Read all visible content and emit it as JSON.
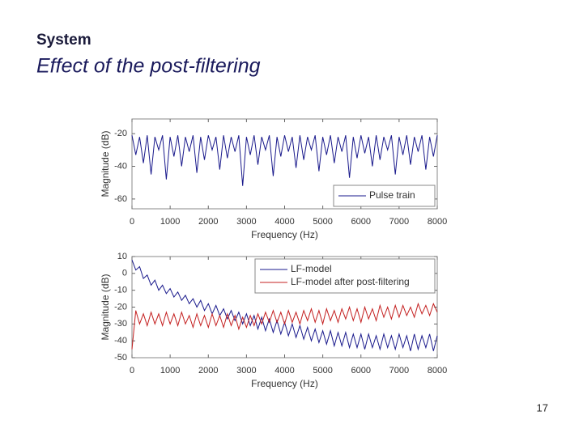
{
  "header": {
    "section": "System",
    "title": "Effect of the post-filtering"
  },
  "page_number": "17",
  "chart_data": [
    {
      "type": "line",
      "xlabel": "Frequency (Hz)",
      "ylabel": "Magnitude (dB)",
      "xlim": [
        0,
        8000
      ],
      "ylim": [
        -66,
        -11
      ],
      "xticks": [
        0,
        1000,
        2000,
        3000,
        4000,
        5000,
        6000,
        7000,
        8000
      ],
      "yticks": [
        -20,
        -40,
        -60
      ],
      "legend": "lower right",
      "x": [
        0,
        100,
        200,
        300,
        400,
        500,
        600,
        700,
        800,
        900,
        1000,
        1100,
        1200,
        1300,
        1400,
        1500,
        1600,
        1700,
        1800,
        1900,
        2000,
        2100,
        2200,
        2300,
        2400,
        2500,
        2600,
        2700,
        2800,
        2900,
        3000,
        3100,
        3200,
        3300,
        3400,
        3500,
        3600,
        3700,
        3800,
        3900,
        4000,
        4100,
        4200,
        4300,
        4400,
        4500,
        4600,
        4700,
        4800,
        4900,
        5000,
        5100,
        5200,
        5300,
        5400,
        5500,
        5600,
        5700,
        5800,
        5900,
        6000,
        6100,
        6200,
        6300,
        6400,
        6500,
        6600,
        6700,
        6800,
        6900,
        7000,
        7100,
        7200,
        7300,
        7400,
        7500,
        7600,
        7700,
        7800,
        7900,
        8000
      ],
      "series": [
        {
          "name": "Pulse train",
          "color": "#1a1a8c",
          "values": [
            -21,
            -33,
            -22,
            -38,
            -21,
            -45,
            -22,
            -30,
            -21,
            -48,
            -22,
            -34,
            -21,
            -40,
            -22,
            -31,
            -21,
            -44,
            -22,
            -36,
            -21,
            -30,
            -22,
            -42,
            -21,
            -35,
            -22,
            -31,
            -21,
            -52,
            -22,
            -33,
            -21,
            -39,
            -22,
            -30,
            -21,
            -46,
            -22,
            -34,
            -21,
            -31,
            -22,
            -41,
            -21,
            -36,
            -22,
            -30,
            -21,
            -43,
            -22,
            -33,
            -21,
            -38,
            -22,
            -31,
            -21,
            -47,
            -22,
            -35,
            -21,
            -32,
            -22,
            -40,
            -21,
            -36,
            -22,
            -30,
            -21,
            -45,
            -22,
            -33,
            -21,
            -39,
            -22,
            -31,
            -21,
            -42,
            -22,
            -34,
            -21
          ]
        }
      ]
    },
    {
      "type": "line",
      "xlabel": "Frequency (Hz)",
      "ylabel": "Magnitude (dB)",
      "xlim": [
        0,
        8000
      ],
      "ylim": [
        -50,
        10
      ],
      "xticks": [
        0,
        1000,
        2000,
        3000,
        4000,
        5000,
        6000,
        7000,
        8000
      ],
      "yticks": [
        10,
        0,
        -10,
        -20,
        -30,
        -40,
        -50
      ],
      "legend": "upper right",
      "x": [
        0,
        100,
        200,
        300,
        400,
        500,
        600,
        700,
        800,
        900,
        1000,
        1100,
        1200,
        1300,
        1400,
        1500,
        1600,
        1700,
        1800,
        1900,
        2000,
        2100,
        2200,
        2300,
        2400,
        2500,
        2600,
        2700,
        2800,
        2900,
        3000,
        3100,
        3200,
        3300,
        3400,
        3500,
        3600,
        3700,
        3800,
        3900,
        4000,
        4100,
        4200,
        4300,
        4400,
        4500,
        4600,
        4700,
        4800,
        4900,
        5000,
        5100,
        5200,
        5300,
        5400,
        5500,
        5600,
        5700,
        5800,
        5900,
        6000,
        6100,
        6200,
        6300,
        6400,
        6500,
        6600,
        6700,
        6800,
        6900,
        7000,
        7100,
        7200,
        7300,
        7400,
        7500,
        7600,
        7700,
        7800,
        7900,
        8000
      ],
      "series": [
        {
          "name": "LF-model",
          "color": "#1a1a8c",
          "values": [
            8,
            2,
            4,
            -3,
            -1,
            -7,
            -4,
            -10,
            -7,
            -12,
            -9,
            -14,
            -11,
            -16,
            -13,
            -18,
            -15,
            -20,
            -16,
            -22,
            -18,
            -24,
            -19,
            -25,
            -21,
            -27,
            -22,
            -28,
            -23,
            -30,
            -24,
            -31,
            -25,
            -33,
            -26,
            -34,
            -27,
            -35,
            -28,
            -36,
            -29,
            -37,
            -30,
            -38,
            -31,
            -39,
            -32,
            -40,
            -33,
            -41,
            -34,
            -42,
            -34,
            -43,
            -35,
            -43,
            -35,
            -44,
            -36,
            -44,
            -36,
            -45,
            -36,
            -44,
            -37,
            -45,
            -36,
            -44,
            -37,
            -45,
            -36,
            -44,
            -37,
            -46,
            -36,
            -45,
            -37,
            -44,
            -36,
            -46,
            -37
          ]
        },
        {
          "name": "LF-model after post-filtering",
          "color": "#c42020",
          "values": [
            -45,
            -22,
            -30,
            -24,
            -31,
            -23,
            -30,
            -24,
            -31,
            -23,
            -30,
            -24,
            -31,
            -23,
            -30,
            -25,
            -32,
            -24,
            -31,
            -25,
            -32,
            -24,
            -31,
            -25,
            -32,
            -24,
            -31,
            -25,
            -33,
            -26,
            -32,
            -25,
            -31,
            -24,
            -30,
            -23,
            -29,
            -22,
            -29,
            -23,
            -30,
            -22,
            -29,
            -23,
            -30,
            -22,
            -28,
            -21,
            -29,
            -22,
            -30,
            -21,
            -28,
            -22,
            -29,
            -21,
            -27,
            -20,
            -28,
            -21,
            -29,
            -20,
            -27,
            -21,
            -28,
            -19,
            -26,
            -20,
            -27,
            -19,
            -26,
            -19,
            -25,
            -20,
            -26,
            -18,
            -24,
            -19,
            -25,
            -18,
            -23
          ]
        }
      ]
    }
  ]
}
